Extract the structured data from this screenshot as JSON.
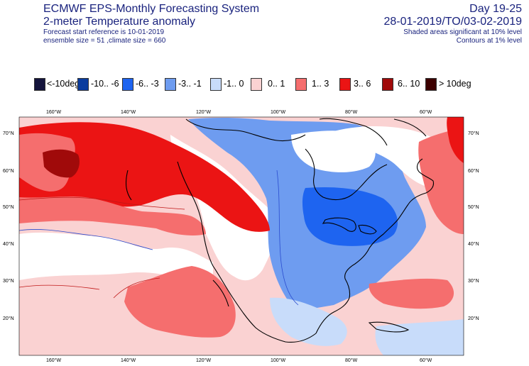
{
  "header": {
    "title": "ECMWF EPS-Monthly Forecasting System",
    "subtitle": "2-meter Temperature anomaly",
    "forecast_ref": "Forecast start reference is 10-01-2019",
    "ensemble": "ensemble size = 51  ,climate size = 660",
    "day_range": "Day 19-25",
    "date_range": "28-01-2019/TO/03-02-2019",
    "shaded_note": "Shaded areas significant at 10% level",
    "contour_note": "Contours at 1% level"
  },
  "legend": [
    {
      "label": "<-10deg",
      "color": "#14143c"
    },
    {
      "label": "-10.. -6",
      "color": "#0a3c9e"
    },
    {
      "label": "-6.. -3",
      "color": "#1e64f0"
    },
    {
      "label": "-3.. -1",
      "color": "#6e9cf0"
    },
    {
      "label": "-1..  0",
      "color": "#c8dcfa"
    },
    {
      "label": "0..  1",
      "color": "#fad2d2"
    },
    {
      "label": "1..  3",
      "color": "#f56e6e"
    },
    {
      "label": "3..  6",
      "color": "#eb1414"
    },
    {
      "label": "6.. 10",
      "color": "#a00a0a"
    },
    {
      "label": "> 10deg",
      "color": "#3c0000"
    }
  ],
  "axes": {
    "lon_top": [
      "160°W",
      "140°W",
      "120°W",
      "100°W",
      "80°W",
      "60°W"
    ],
    "lon_bottom": [
      "160°W",
      "140°W",
      "120°W",
      "100°W",
      "80°W",
      "60°W"
    ],
    "lat_left": [
      "70°N",
      "60°N",
      "50°N",
      "40°N",
      "30°N",
      "20°N"
    ],
    "lat_right": [
      "70°N",
      "60°N",
      "50°N",
      "40°N",
      "30°N",
      "20°N"
    ]
  }
}
